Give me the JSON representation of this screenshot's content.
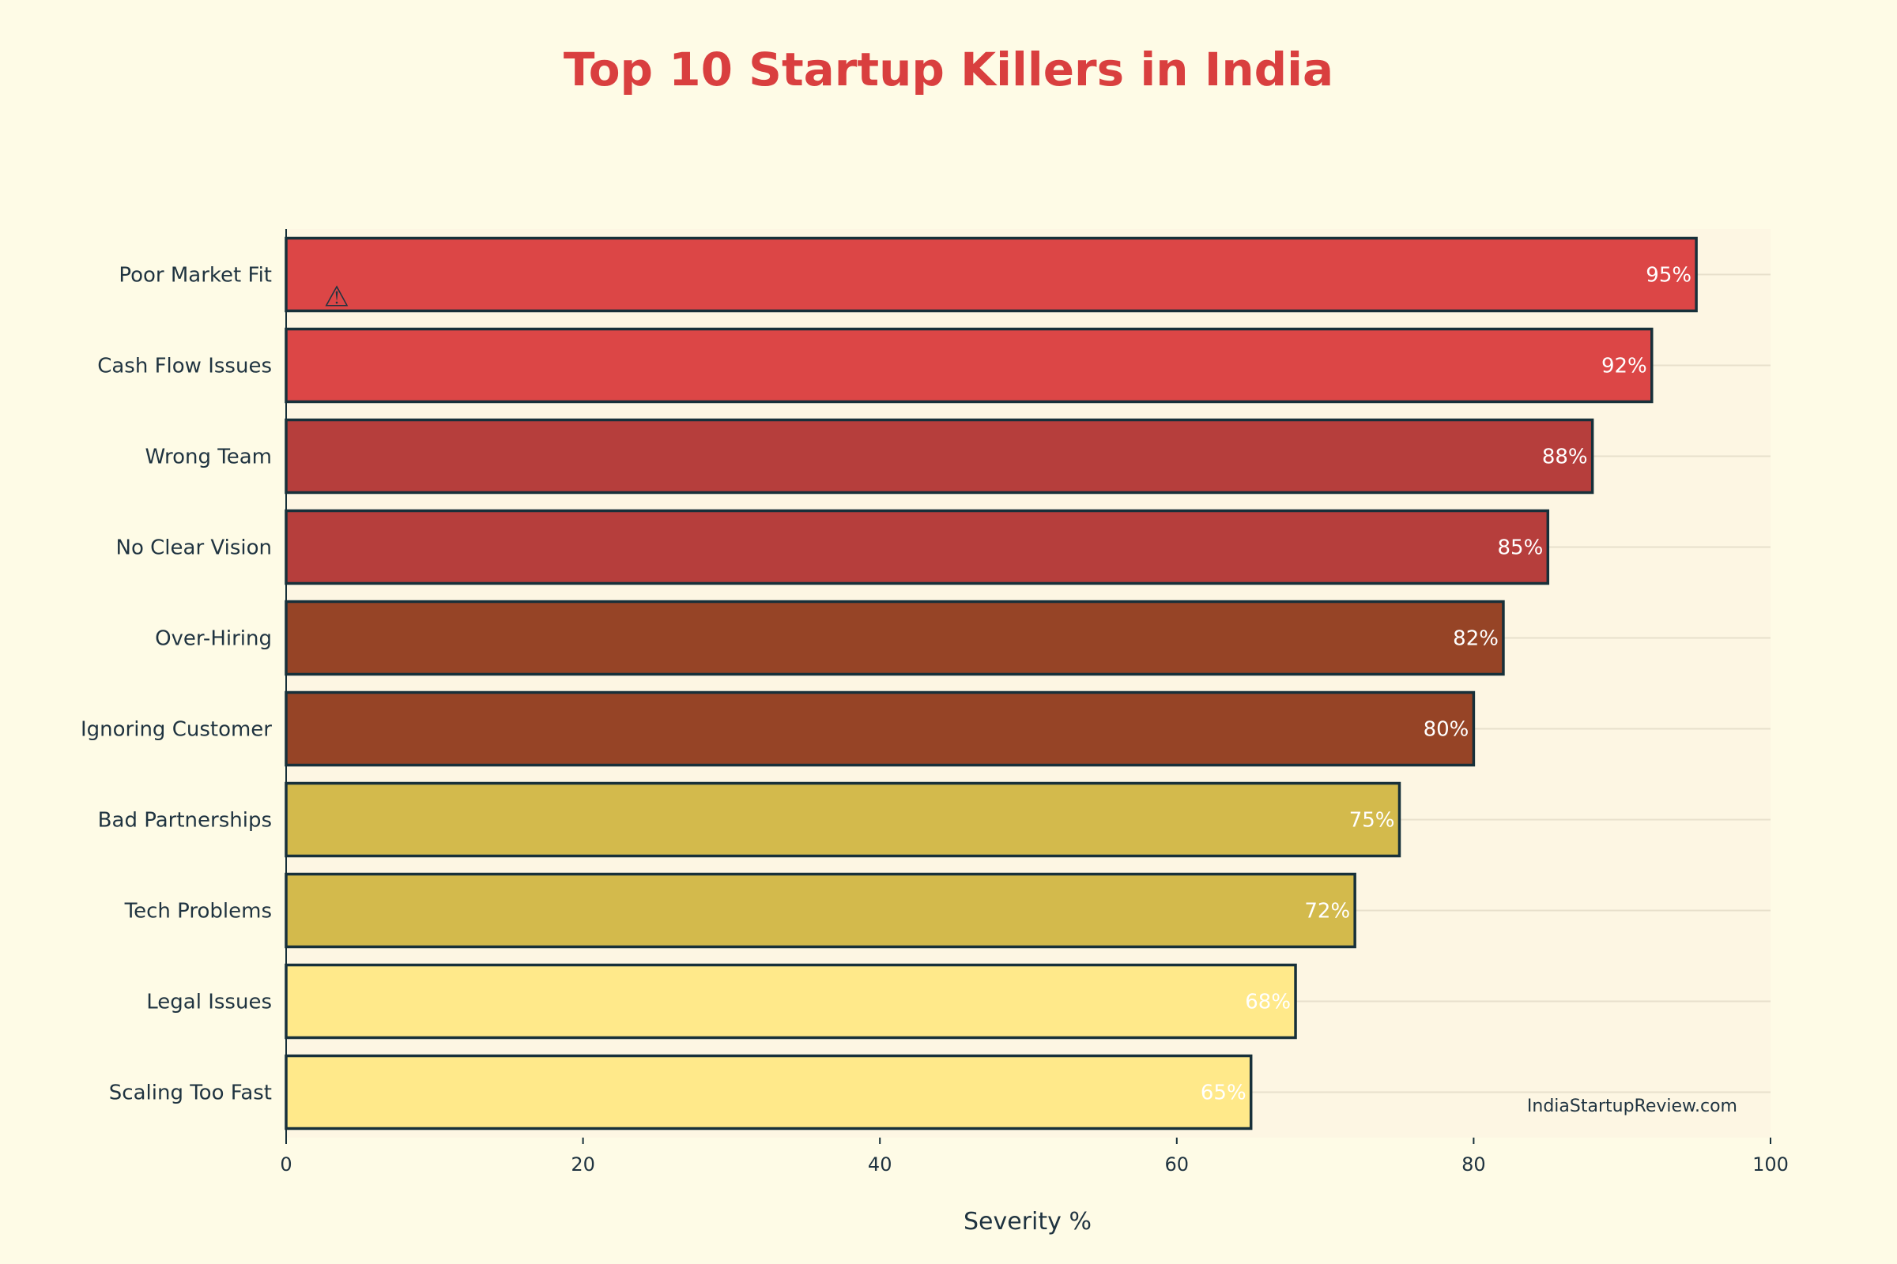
{
  "chart_data": {
    "type": "bar",
    "orientation": "horizontal",
    "title": "Top 10 Startup Killers in India",
    "xlabel": "Severity %",
    "ylabel": "",
    "xlim": [
      0,
      100
    ],
    "x_ticks": [
      0,
      20,
      40,
      60,
      80,
      100
    ],
    "grid": true,
    "legend": "none",
    "categories": [
      "Poor Market Fit",
      "Cash Flow Issues",
      "Wrong Team",
      "No Clear Vision",
      "Over-Hiring",
      "Ignoring Customer",
      "Bad Partnerships",
      "Tech Problems",
      "Legal Issues",
      "Scaling Too Fast"
    ],
    "values": [
      95,
      92,
      88,
      85,
      82,
      80,
      75,
      72,
      68,
      65
    ],
    "data_labels": [
      "95%",
      "92%",
      "88%",
      "85%",
      "82%",
      "80%",
      "75%",
      "72%",
      "68%",
      "65%"
    ],
    "bar_colors": [
      "#DC4646",
      "#DC4646",
      "#B63E3C",
      "#B63E3C",
      "#964426",
      "#964426",
      "#D3BA4C",
      "#D3BA4C",
      "#FFE98A",
      "#FFE98A"
    ],
    "annotation": {
      "icon": "warning-icon",
      "glyph": "⚠",
      "target": "Poor Market Fit"
    },
    "source_text": "IndiaStartupReview.com"
  },
  "colors": {
    "page_background": "#FEFBE6",
    "plot_background": "#FDF6E3",
    "title": "#D93F3F",
    "text": "#1F3340",
    "bar_outline": "#17303A",
    "grid": "#E8E0CC"
  }
}
